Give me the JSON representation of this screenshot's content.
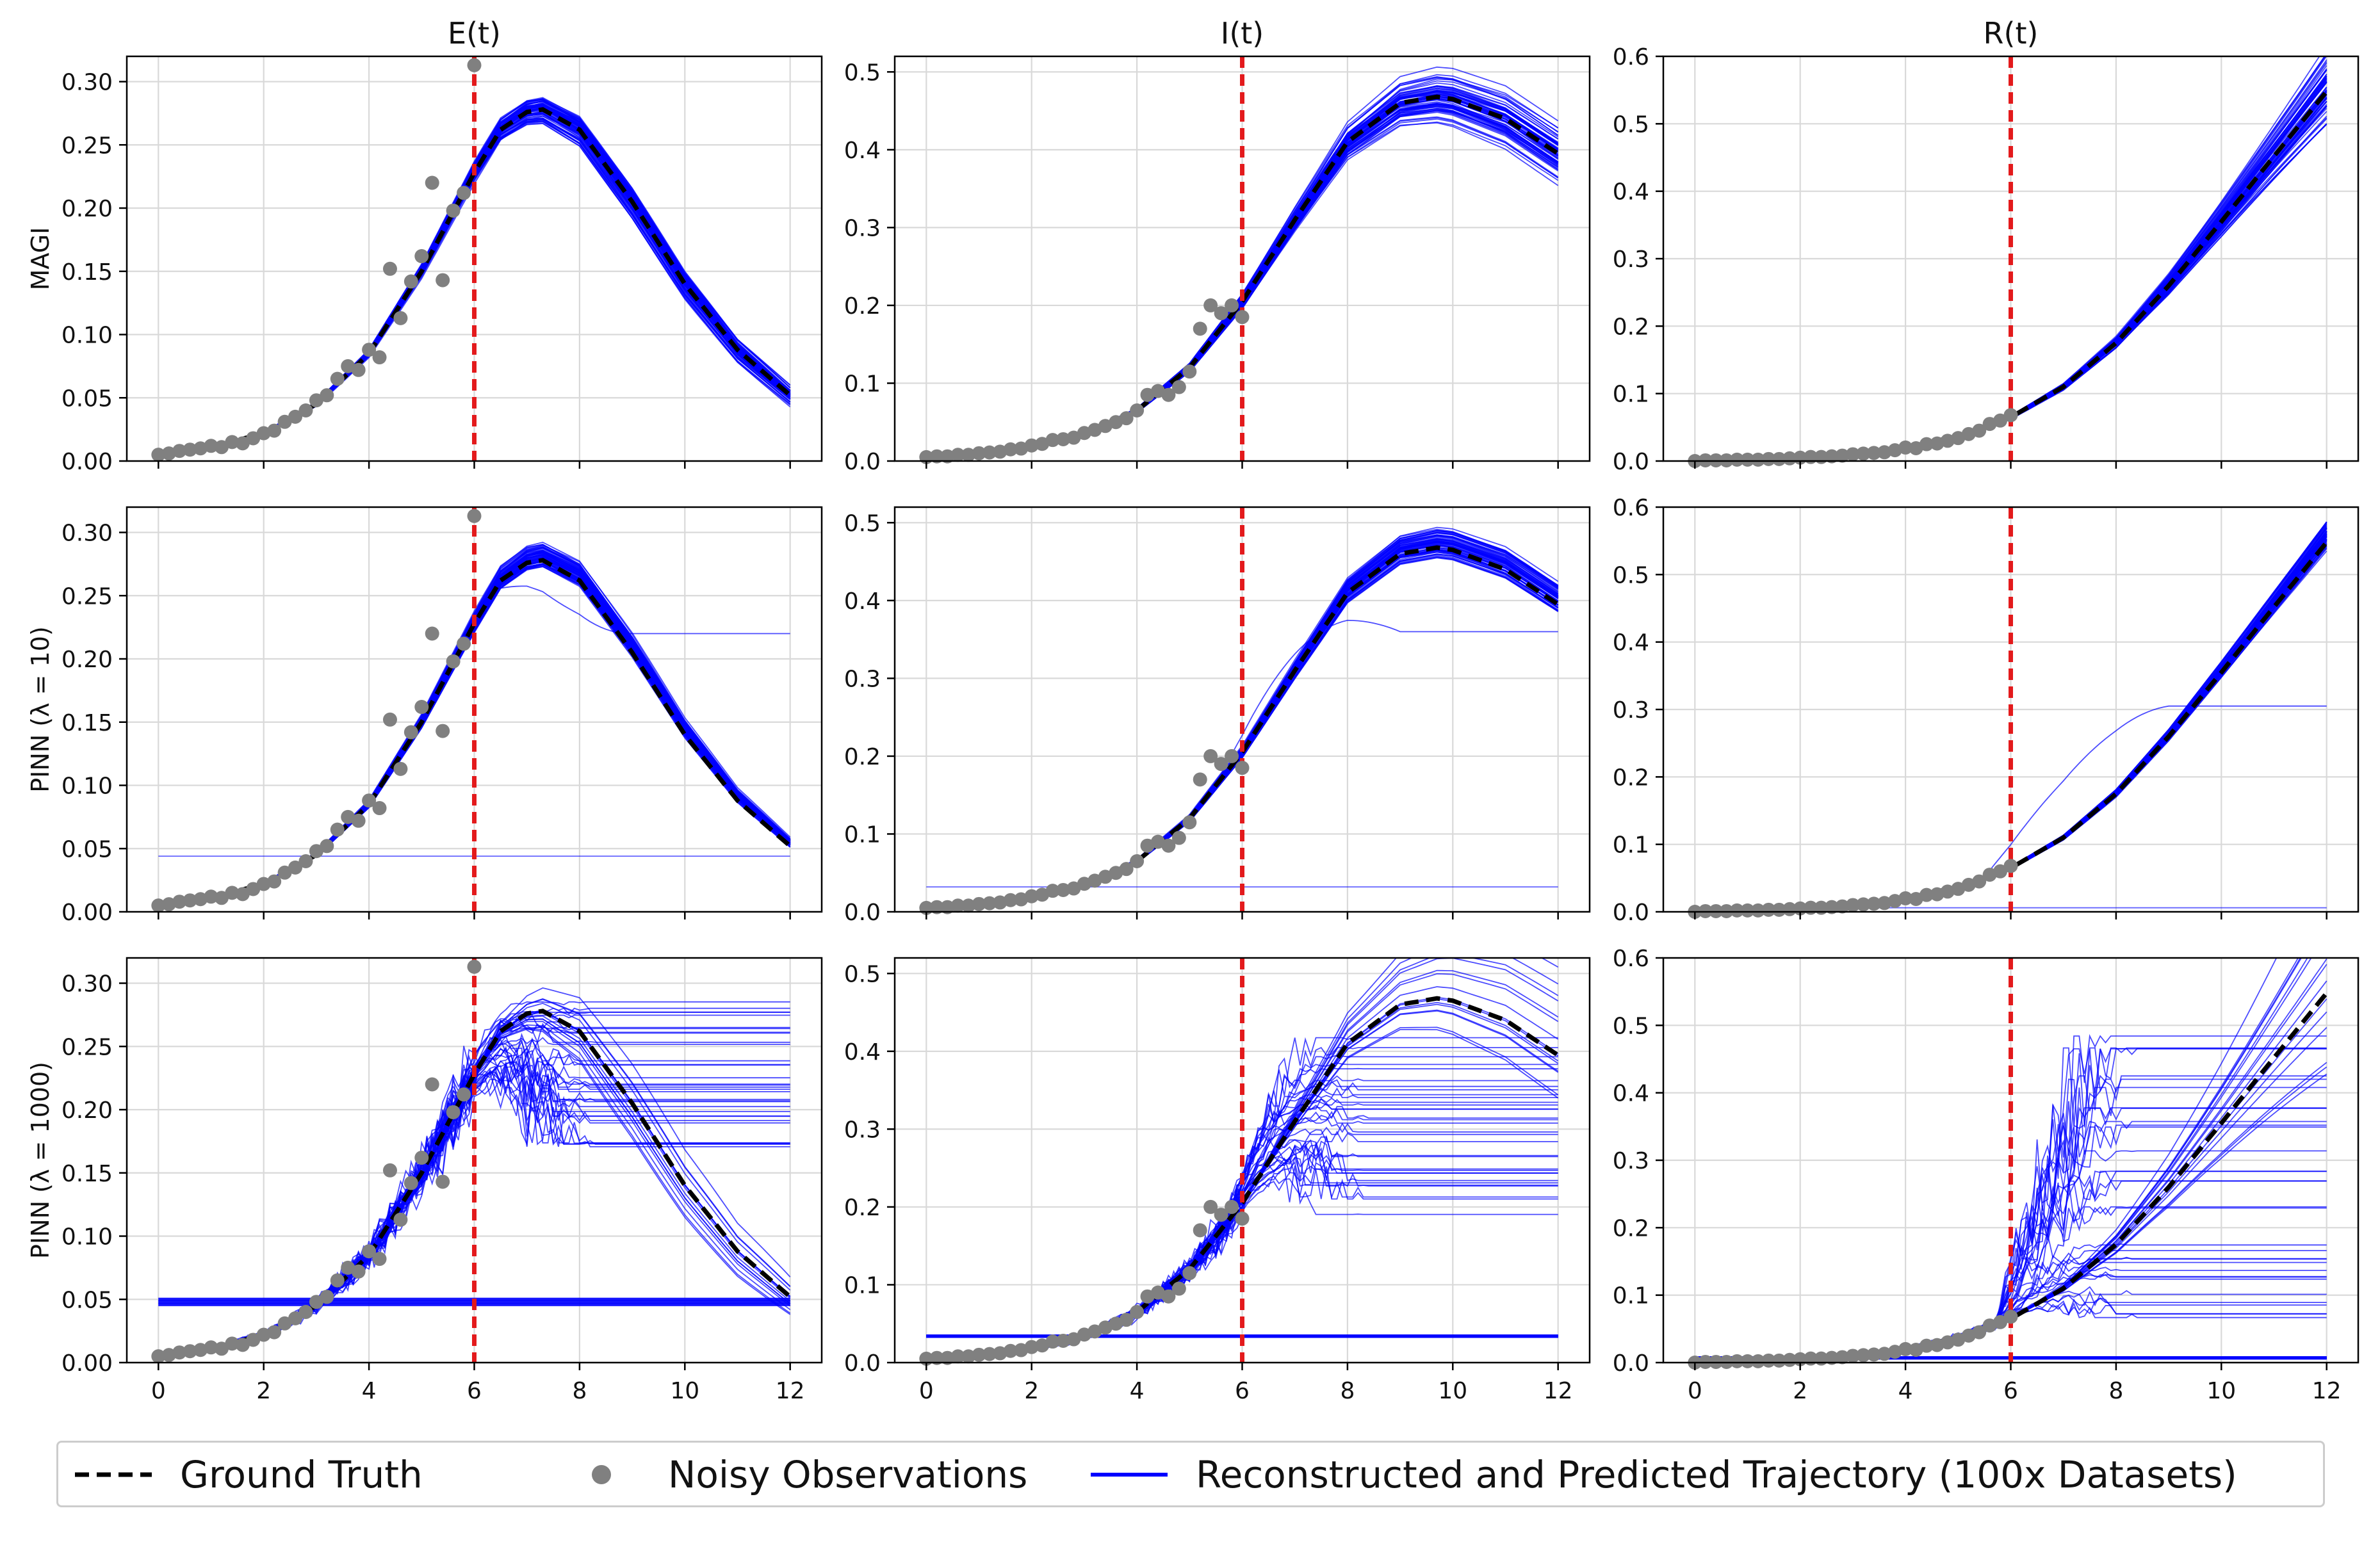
{
  "figure": {
    "columns": [
      "E(t)",
      "I(t)",
      "R(t)"
    ],
    "rows": [
      "MAGI",
      "PINN (λ = 10)",
      "PINN (λ = 1000)"
    ]
  },
  "legend": {
    "ground_truth": "Ground Truth",
    "noisy": "Noisy Observations",
    "trajectory": "Reconstructed and Predicted Trajectory (100x Datasets)"
  },
  "colors": {
    "truth": "#000000",
    "observations": "#808080",
    "trajectories": "#0000ff",
    "cutoff": "#e31a1c",
    "grid": "#d9d9d9"
  },
  "chart_data": {
    "type": "line",
    "layout": "3x3 grid",
    "grid": true,
    "legend_position": "bottom-center",
    "xlim": [
      -0.6,
      12.6
    ],
    "xticks": [
      0,
      2,
      4,
      6,
      8,
      10,
      12
    ],
    "cutoff_x": 6,
    "n_datasets": 100,
    "panels": {
      "E": {
        "ylim": [
          0,
          0.32
        ],
        "yticks": [
          "0.00",
          "0.05",
          "0.10",
          "0.15",
          "0.20",
          "0.25",
          "0.30"
        ],
        "ground_truth": {
          "x": [
            0,
            1,
            2,
            3,
            4,
            5,
            6,
            6.5,
            7,
            7.3,
            8,
            9,
            10,
            11,
            12
          ],
          "y": [
            0.005,
            0.011,
            0.022,
            0.045,
            0.085,
            0.15,
            0.228,
            0.262,
            0.276,
            0.278,
            0.262,
            0.205,
            0.14,
            0.088,
            0.052
          ]
        },
        "observations": {
          "x": [
            0,
            0.2,
            0.4,
            0.6,
            0.8,
            1,
            1.2,
            1.4,
            1.6,
            1.8,
            2,
            2.2,
            2.4,
            2.6,
            2.8,
            3,
            3.2,
            3.4,
            3.6,
            3.8,
            4,
            4.2,
            4.4,
            4.6,
            4.8,
            5,
            5.2,
            5.4,
            5.6,
            5.8,
            6
          ],
          "y": [
            0.005,
            0.006,
            0.008,
            0.009,
            0.01,
            0.012,
            0.011,
            0.015,
            0.014,
            0.018,
            0.022,
            0.024,
            0.031,
            0.035,
            0.04,
            0.048,
            0.052,
            0.065,
            0.075,
            0.072,
            0.088,
            0.082,
            0.152,
            0.113,
            0.142,
            0.162,
            0.22,
            0.143,
            0.198,
            0.212,
            0.313
          ]
        }
      },
      "I": {
        "ylim": [
          0,
          0.52
        ],
        "yticks": [
          "0.0",
          "0.1",
          "0.2",
          "0.3",
          "0.4",
          "0.5"
        ],
        "ground_truth": {
          "x": [
            0,
            1,
            2,
            3,
            4,
            5,
            6,
            7,
            8,
            9,
            9.7,
            10,
            11,
            12
          ],
          "y": [
            0.005,
            0.009,
            0.018,
            0.034,
            0.065,
            0.12,
            0.205,
            0.31,
            0.41,
            0.46,
            0.468,
            0.465,
            0.44,
            0.395
          ]
        },
        "observations": {
          "x": [
            0,
            0.2,
            0.4,
            0.6,
            0.8,
            1,
            1.2,
            1.4,
            1.6,
            1.8,
            2,
            2.2,
            2.4,
            2.6,
            2.8,
            3,
            3.2,
            3.4,
            3.6,
            3.8,
            4,
            4.2,
            4.4,
            4.6,
            4.8,
            5,
            5.2,
            5.4,
            5.6,
            5.8,
            6
          ],
          "y": [
            0.005,
            0.006,
            0.006,
            0.008,
            0.008,
            0.01,
            0.011,
            0.012,
            0.015,
            0.016,
            0.02,
            0.022,
            0.027,
            0.028,
            0.03,
            0.036,
            0.04,
            0.045,
            0.05,
            0.055,
            0.065,
            0.085,
            0.09,
            0.085,
            0.095,
            0.115,
            0.17,
            0.2,
            0.19,
            0.2,
            0.185
          ]
        }
      },
      "R": {
        "ylim": [
          0,
          0.6
        ],
        "yticks": [
          "0.0",
          "0.1",
          "0.2",
          "0.3",
          "0.4",
          "0.5",
          "0.6"
        ],
        "ground_truth": {
          "x": [
            0,
            1,
            2,
            3,
            4,
            5,
            6,
            7,
            8,
            9,
            10,
            11,
            12
          ],
          "y": [
            0.0,
            0.002,
            0.005,
            0.01,
            0.02,
            0.037,
            0.065,
            0.11,
            0.175,
            0.26,
            0.355,
            0.452,
            0.548
          ]
        },
        "observations": {
          "x": [
            0,
            0.2,
            0.4,
            0.6,
            0.8,
            1,
            1.2,
            1.4,
            1.6,
            1.8,
            2,
            2.2,
            2.4,
            2.6,
            2.8,
            3,
            3.2,
            3.4,
            3.6,
            3.8,
            4,
            4.2,
            4.4,
            4.6,
            4.8,
            5,
            5.2,
            5.4,
            5.6,
            5.8,
            6
          ],
          "y": [
            0.0,
            0.001,
            0.001,
            0.001,
            0.002,
            0.002,
            0.002,
            0.003,
            0.003,
            0.004,
            0.005,
            0.006,
            0.006,
            0.007,
            0.008,
            0.01,
            0.011,
            0.012,
            0.013,
            0.016,
            0.02,
            0.019,
            0.025,
            0.026,
            0.03,
            0.034,
            0.04,
            0.045,
            0.055,
            0.06,
            0.068
          ]
        }
      }
    }
  }
}
